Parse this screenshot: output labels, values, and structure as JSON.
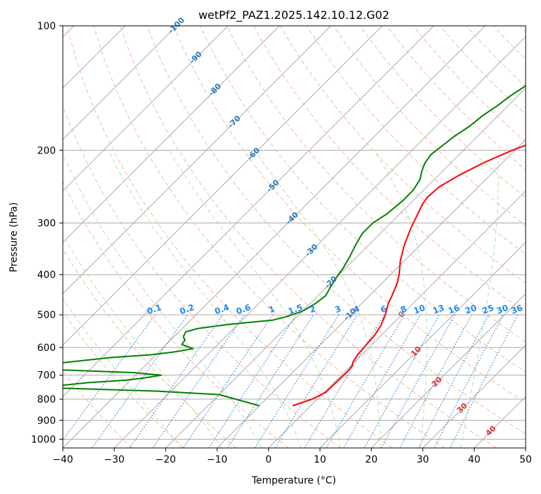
{
  "chart_data": {
    "type": "line",
    "title": "wetPf2_PAZ1.2025.142.10.12.G02",
    "xlabel": "Temperature (°C)",
    "ylabel": "Pressure (hPa)",
    "xlim": [
      -40,
      50
    ],
    "ylim": [
      1050,
      100
    ],
    "y_scale": "log",
    "x_ticks": [
      -40,
      -30,
      -20,
      -10,
      0,
      10,
      20,
      30,
      40,
      50
    ],
    "y_ticks": [
      1000,
      900,
      800,
      700,
      600,
      500,
      400,
      300,
      200,
      100
    ],
    "grid": true,
    "series": [
      {
        "role": "temperature",
        "color": "#ff0000",
        "points": [
          [
            -3.5,
            830
          ],
          [
            -1,
            800
          ],
          [
            0.3,
            770
          ],
          [
            0.4,
            720
          ],
          [
            0.5,
            685
          ],
          [
            0.3,
            665
          ],
          [
            -0.3,
            650
          ],
          [
            -0.8,
            625
          ],
          [
            -1.0,
            600
          ],
          [
            -1.3,
            560
          ],
          [
            -2.0,
            530
          ],
          [
            -3.2,
            500
          ],
          [
            -4.8,
            470
          ],
          [
            -5.6,
            450
          ],
          [
            -7.0,
            420
          ],
          [
            -8.3,
            400
          ],
          [
            -10.8,
            370
          ],
          [
            -13.0,
            340
          ],
          [
            -15.0,
            310
          ],
          [
            -16.5,
            285
          ],
          [
            -17.5,
            270
          ],
          [
            -17.9,
            260
          ],
          [
            -17.6,
            245
          ],
          [
            -16.0,
            230
          ],
          [
            -13.8,
            215
          ],
          [
            -10.5,
            200
          ],
          [
            -7.5,
            190
          ],
          [
            -3.6,
            180
          ],
          [
            -0.3,
            172
          ],
          [
            1.8,
            165
          ],
          [
            3.6,
            160
          ],
          [
            5.5,
            155
          ],
          [
            10.0,
            143
          ],
          [
            14.0,
            134
          ],
          [
            19.5,
            124
          ],
          [
            22.0,
            119
          ],
          [
            26.0,
            113
          ],
          [
            30.0,
            107
          ],
          [
            35.0,
            100
          ]
        ]
      },
      {
        "role": "dewpoint",
        "color": "#008000",
        "points": [
          [
            -10,
            830
          ],
          [
            -20,
            780
          ],
          [
            -33,
            765
          ],
          [
            -48,
            755
          ],
          [
            -56,
            750
          ],
          [
            -48,
            730
          ],
          [
            -41,
            720
          ],
          [
            -38,
            712
          ],
          [
            -35,
            700
          ],
          [
            -41,
            690
          ],
          [
            -55,
            680
          ],
          [
            -63,
            668
          ],
          [
            -48,
            634
          ],
          [
            -41,
            625
          ],
          [
            -37,
            615
          ],
          [
            -34,
            604
          ],
          [
            -37,
            590
          ],
          [
            -37.2,
            576
          ],
          [
            -38.2,
            565
          ],
          [
            -38.7,
            550
          ],
          [
            -37,
            540
          ],
          [
            -32,
            528
          ],
          [
            -24,
            515
          ],
          [
            -22,
            505
          ],
          [
            -20,
            490
          ],
          [
            -19,
            470
          ],
          [
            -18.5,
            450
          ],
          [
            -19.2,
            430
          ],
          [
            -20,
            405
          ],
          [
            -20.5,
            385
          ],
          [
            -21.5,
            360
          ],
          [
            -22.5,
            340
          ],
          [
            -23.5,
            318
          ],
          [
            -23.5,
            300
          ],
          [
            -22.5,
            285
          ],
          [
            -22.0,
            265
          ],
          [
            -22.0,
            250
          ],
          [
            -22.8,
            235
          ],
          [
            -24.0,
            225
          ],
          [
            -25.0,
            215
          ],
          [
            -25.5,
            205
          ],
          [
            -25.0,
            195
          ],
          [
            -24.5,
            185
          ],
          [
            -23.5,
            175
          ],
          [
            -23.0,
            165
          ],
          [
            -22.0,
            155
          ],
          [
            -21.5,
            148
          ],
          [
            -20.5,
            140
          ],
          [
            -19.5,
            130
          ],
          [
            -19.5,
            120
          ],
          [
            -19.2,
            110
          ],
          [
            -19.0,
            100
          ]
        ]
      }
    ],
    "isotherm_labels": [
      "-100",
      "-90",
      "-80",
      "-70",
      "-60",
      "-50",
      "-40",
      "-30",
      "-20",
      "-10",
      "0",
      "10",
      "20",
      "30",
      "40"
    ],
    "mixing_ratio_labels": [
      "0.1",
      "0.2",
      "0.4",
      "0.6",
      "1",
      "1.5",
      "2",
      "3",
      "4",
      "6",
      "8",
      "10",
      "13",
      "16",
      "20",
      "25",
      "30",
      "36"
    ],
    "colors": {
      "isotherm": "#aaaaaa",
      "dry_adiabat": "#f7b89a",
      "moist_adiabat": "#b6dfb0",
      "mixing_ratio": "#2b7fd4",
      "mr_label": "#2188f0",
      "iso_label_cold": "#2878b8",
      "iso_label_warm": "#d93030",
      "iso_label_zero": "#888888"
    }
  }
}
